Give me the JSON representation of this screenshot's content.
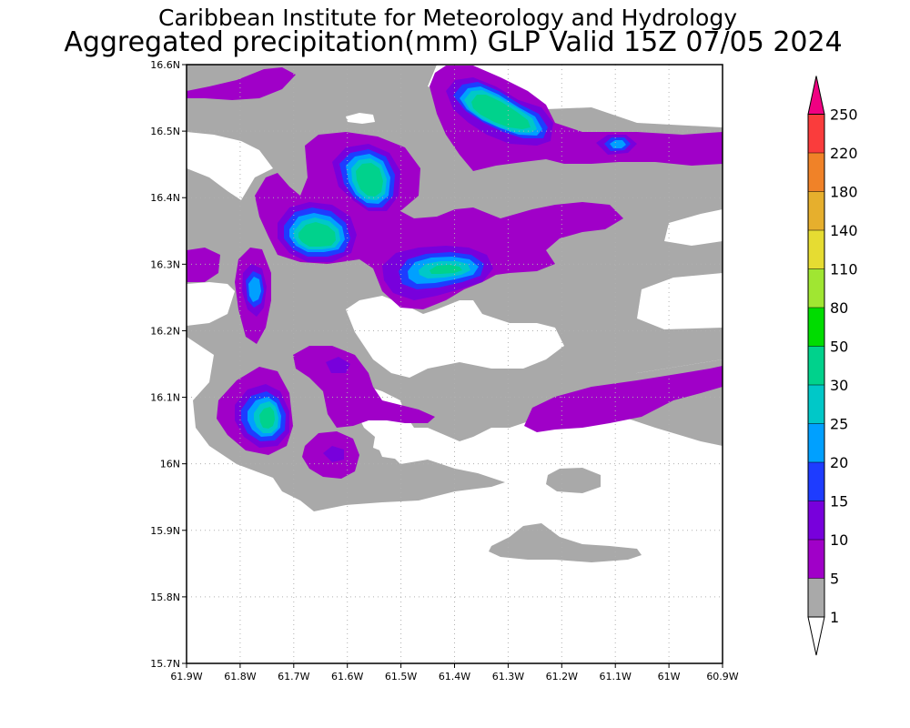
{
  "titles": {
    "line1": "Caribbean Institute for Meteorology and Hydrology",
    "line2": "Aggregated precipitation(mm) GLP Valid 15Z 07/05 2024"
  },
  "map": {
    "lon_range": [
      -61.9,
      -60.9
    ],
    "lat_range": [
      15.7,
      16.6
    ],
    "lon_ticks": [
      "61.9W",
      "61.8W",
      "61.7W",
      "61.6W",
      "61.5W",
      "61.4W",
      "61.3W",
      "61.2W",
      "61.1W",
      "61W",
      "60.9W"
    ],
    "lat_ticks": [
      "16.6N",
      "16.5N",
      "16.4N",
      "16.3N",
      "16.2N",
      "16.1N",
      "16N",
      "15.9N",
      "15.8N",
      "15.7N"
    ],
    "grid": true
  },
  "colorbar": {
    "levels": [
      "1",
      "5",
      "10",
      "15",
      "20",
      "25",
      "30",
      "50",
      "80",
      "110",
      "140",
      "180",
      "220",
      "250"
    ],
    "colors": [
      "#ffffff",
      "#a9a9a9",
      "#a000c8",
      "#7800dc",
      "#1e3cff",
      "#00a0ff",
      "#00c8c8",
      "#00d28c",
      "#00dc00",
      "#a0e632",
      "#e6dc32",
      "#e6af2d",
      "#f08228",
      "#fa3c3c",
      "#f00082"
    ]
  },
  "colors": {
    "gray": "#a9a9a9",
    "magenta": "#a000c8",
    "violet": "#7800dc",
    "blue": "#1e3cff",
    "lightblue": "#00a0ff",
    "cyan": "#00c8c8",
    "green": "#00d28c"
  }
}
